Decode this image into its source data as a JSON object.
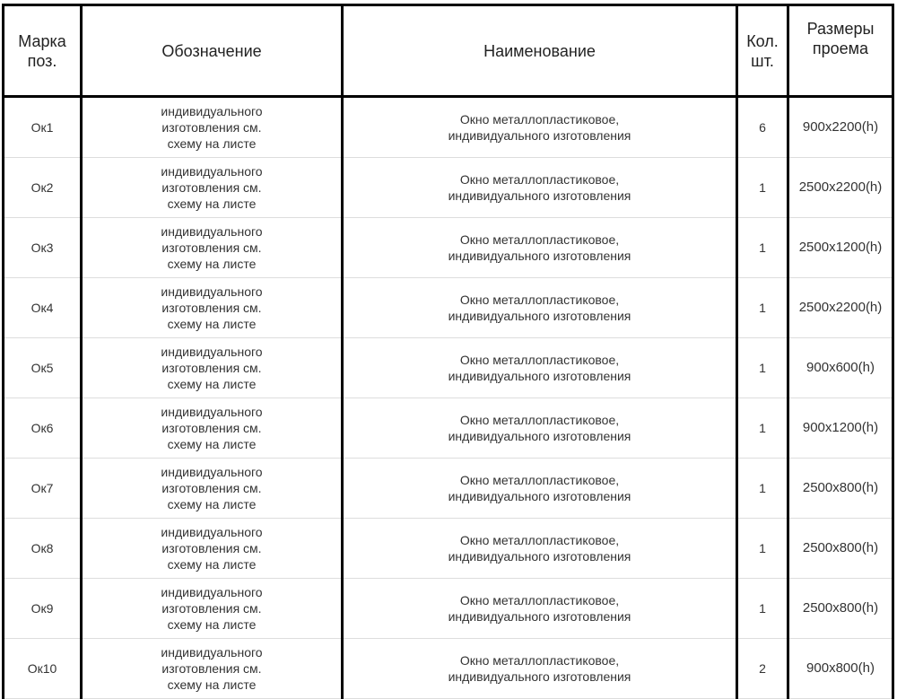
{
  "headers": [
    "Марка поз.",
    "Обозначение",
    "Наименование",
    "Кол. шт.",
    "Размеры проема"
  ],
  "rows": [
    {
      "mark": "Ок1",
      "designation": "индивидуального изготовления см. схему на листе",
      "name": "Окно металлопластиковое, индивидуального изготовления",
      "qty": "6",
      "size": "900x2200(h)"
    },
    {
      "mark": "Ок2",
      "designation": "индивидуального изготовления см. схему на листе",
      "name": "Окно металлопластиковое, индивидуального изготовления",
      "qty": "1",
      "size": "2500x2200(h)"
    },
    {
      "mark": "Ок3",
      "designation": "индивидуального изготовления см. схему на листе",
      "name": "Окно металлопластиковое, индивидуального изготовления",
      "qty": "1",
      "size": "2500x1200(h)"
    },
    {
      "mark": "Ок4",
      "designation": "индивидуального изготовления см. схему на листе",
      "name": "Окно металлопластиковое, индивидуального изготовления",
      "qty": "1",
      "size": "2500x2200(h)"
    },
    {
      "mark": "Ок5",
      "designation": "индивидуального изготовления см. схему на листе",
      "name": "Окно металлопластиковое, индивидуального изготовления",
      "qty": "1",
      "size": "900x600(h)"
    },
    {
      "mark": "Ок6",
      "designation": "индивидуального изготовления см. схему на листе",
      "name": "Окно металлопластиковое, индивидуального изготовления",
      "qty": "1",
      "size": "900x1200(h)"
    },
    {
      "mark": "Ок7",
      "designation": "индивидуального изготовления см. схему на листе",
      "name": "Окно металлопластиковое, индивидуального изготовления",
      "qty": "1",
      "size": "2500x800(h)"
    },
    {
      "mark": "Ок8",
      "designation": "индивидуального изготовления см. схему на листе",
      "name": "Окно металлопластиковое, индивидуального изготовления",
      "qty": "1",
      "size": "2500x800(h)"
    },
    {
      "mark": "Ок9",
      "designation": "индивидуального изготовления см. схему на листе",
      "name": "Окно металлопластиковое, индивидуального изготовления",
      "qty": "1",
      "size": "2500x800(h)"
    },
    {
      "mark": "Ок10",
      "designation": "индивидуального изготовления см. схему на листе",
      "name": "Окно металлопластиковое, индивидуального изготовления",
      "qty": "2",
      "size": "900x800(h)"
    }
  ]
}
